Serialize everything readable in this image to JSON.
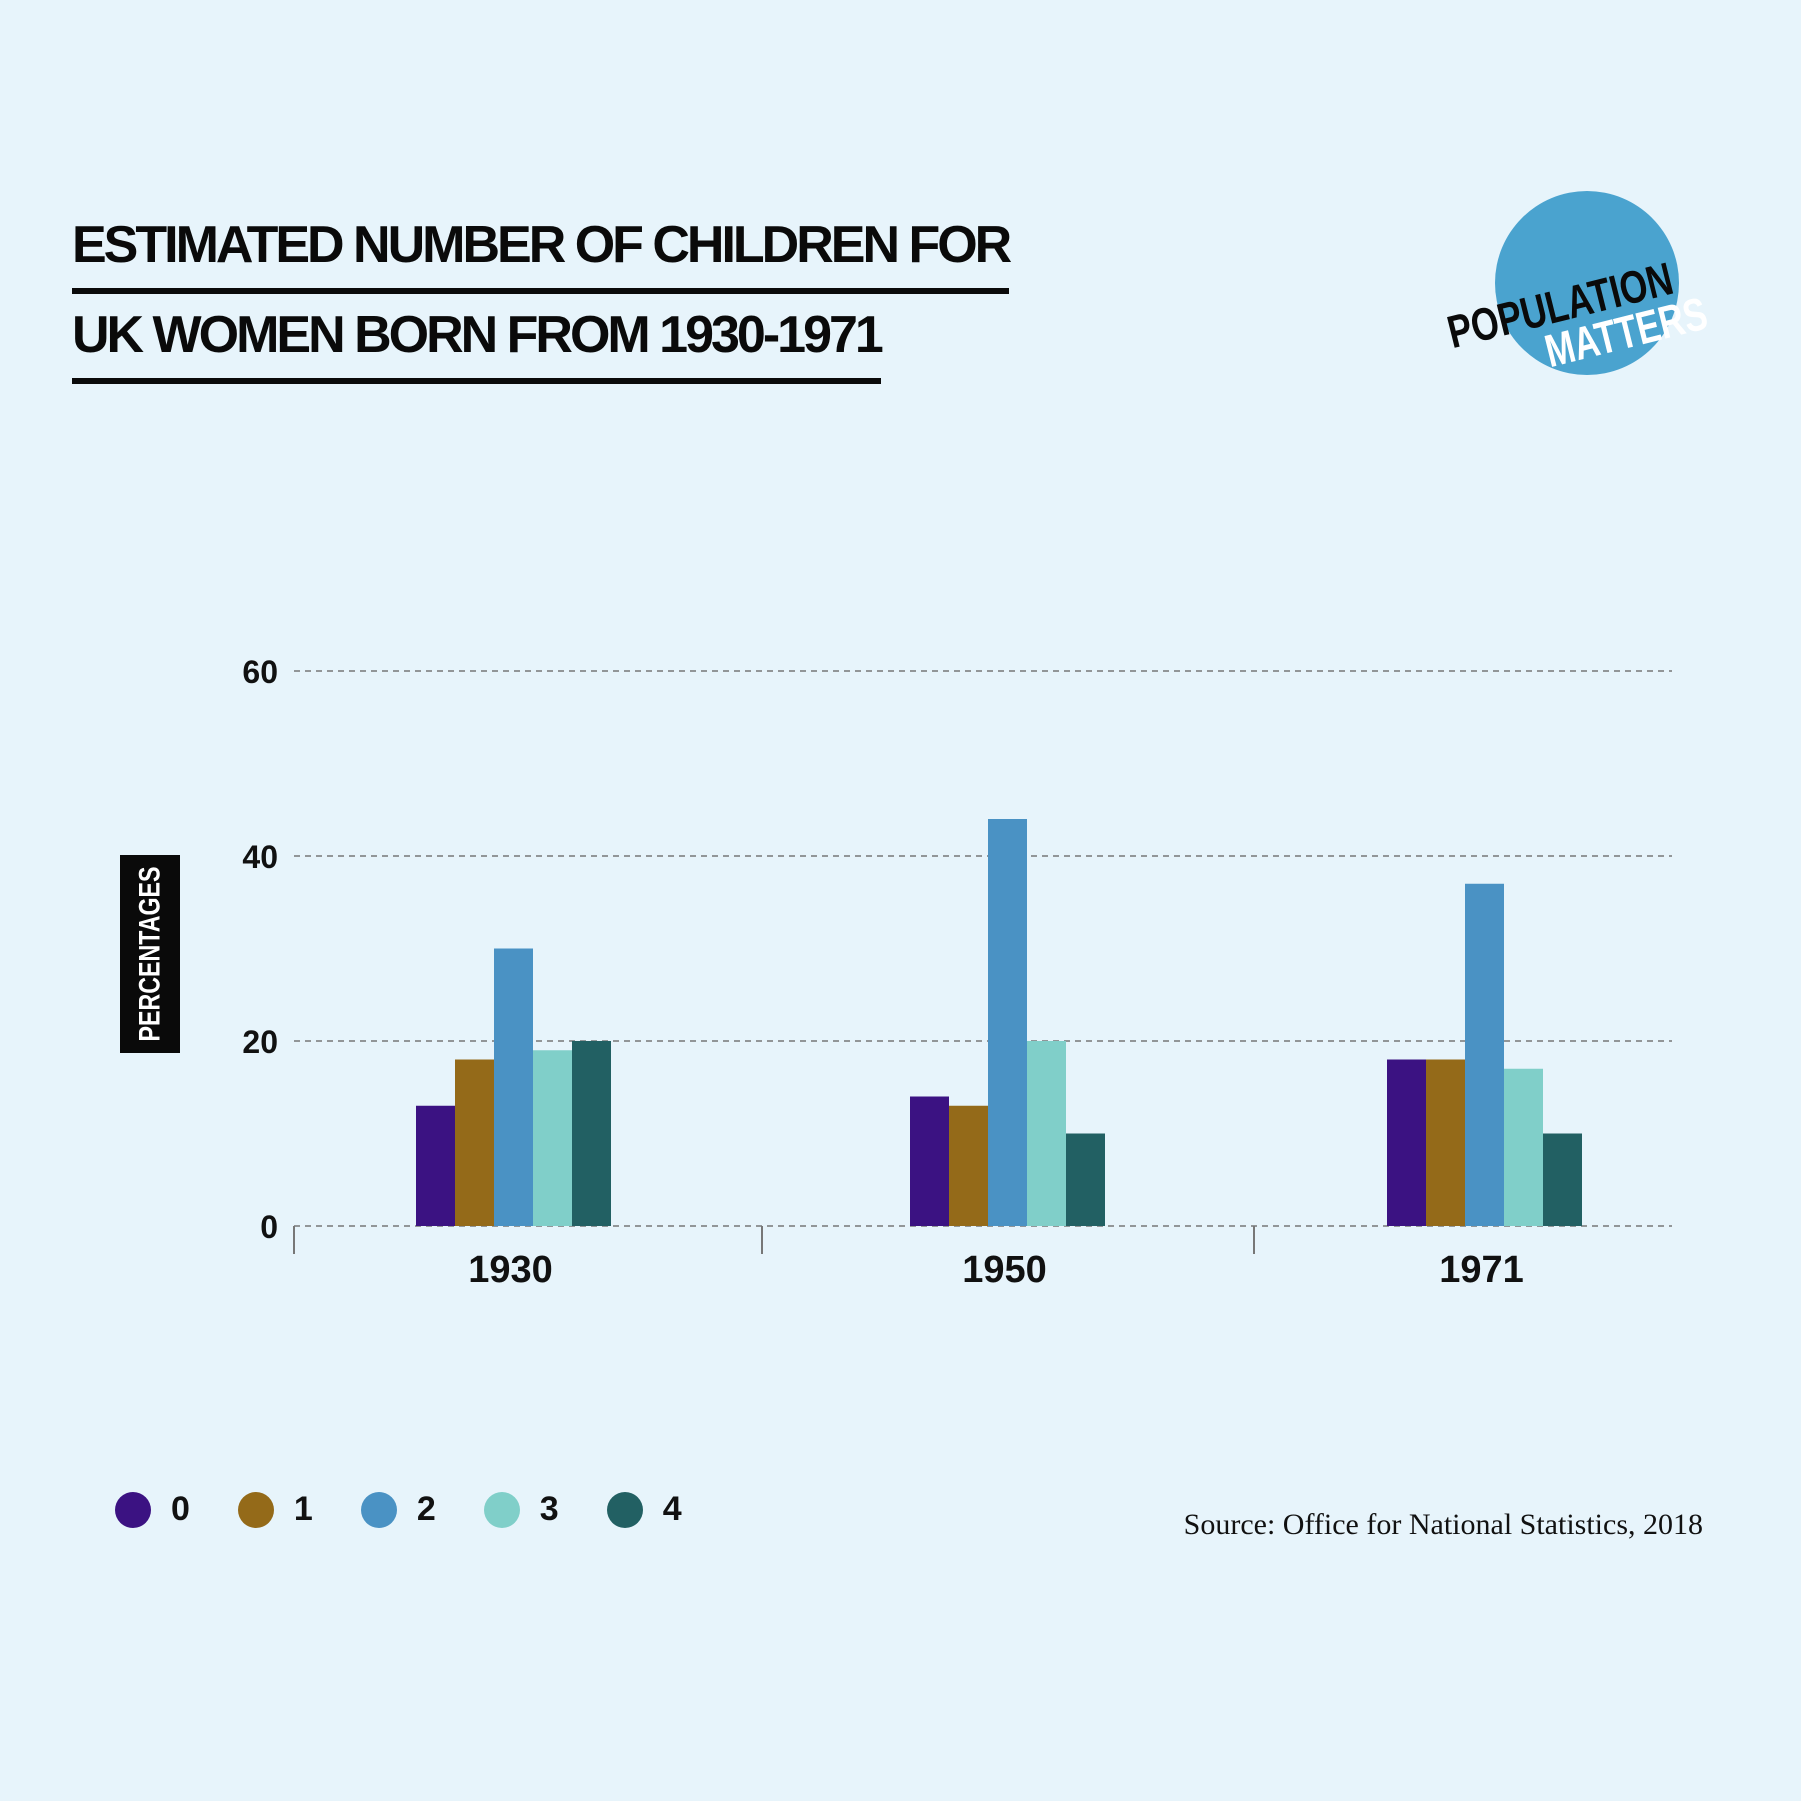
{
  "header": {
    "title_line1": "ESTIMATED NUMBER OF CHILDREN FOR",
    "title_line2": "UK WOMEN BORN FROM 1930-1971"
  },
  "logo": {
    "text_top": "POPULATION",
    "text_bottom": "MATTERS",
    "color": "#4aa3cf"
  },
  "source": "Source: Office for National Statistics, 2018",
  "chart_data": {
    "type": "bar",
    "title": "ESTIMATED NUMBER OF CHILDREN FOR UK WOMEN BORN FROM 1930-1971",
    "xlabel": "",
    "ylabel": "PERCENTAGES",
    "ylim": [
      0,
      60
    ],
    "yticks": [
      0,
      20,
      40,
      60
    ],
    "grid": true,
    "legend_position": "bottom-left",
    "categories": [
      "1930",
      "1950",
      "1971"
    ],
    "series": [
      {
        "name": "0",
        "color": "#3b1282",
        "values": [
          13,
          14,
          18
        ]
      },
      {
        "name": "1",
        "color": "#946a19",
        "values": [
          18,
          13,
          18
        ]
      },
      {
        "name": "2",
        "color": "#4a92c4",
        "values": [
          30,
          44,
          37
        ]
      },
      {
        "name": "3",
        "color": "#80cfc9",
        "values": [
          19,
          20,
          17
        ]
      },
      {
        "name": "4",
        "color": "#226063",
        "values": [
          20,
          10,
          10
        ]
      }
    ]
  }
}
